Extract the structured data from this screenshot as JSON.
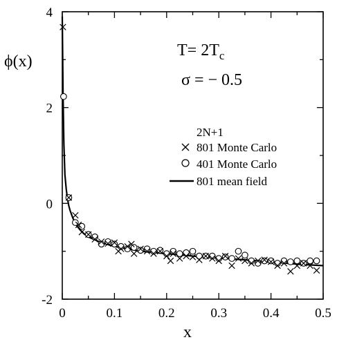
{
  "chart_data": {
    "type": "scatter",
    "xlabel": "x",
    "ylabel": "ϕ(x)",
    "xlim": [
      0,
      0.5
    ],
    "ylim": [
      -2,
      4
    ],
    "x_ticks": [
      "0",
      "0.1",
      "0.2",
      "0.3",
      "0.4",
      "0.5"
    ],
    "y_ticks": [
      "4",
      "2",
      "0",
      "-2"
    ],
    "grid": false,
    "annotations": {
      "temperature": "T= 2T",
      "temperature_sub": "c",
      "sigma": "σ = − 0.5"
    },
    "legend": {
      "title": "2N+1",
      "position": "center-right"
    },
    "series": [
      {
        "name": "801 Monte Carlo",
        "marker": "cross",
        "x": [
          0.0012,
          0.0125,
          0.025,
          0.0312,
          0.0375,
          0.05,
          0.0625,
          0.075,
          0.0875,
          0.1,
          0.1075,
          0.1125,
          0.125,
          0.1325,
          0.1375,
          0.15,
          0.1625,
          0.175,
          0.1875,
          0.2,
          0.2075,
          0.2125,
          0.225,
          0.2375,
          0.25,
          0.2625,
          0.275,
          0.2875,
          0.3,
          0.3125,
          0.325,
          0.3375,
          0.35,
          0.3625,
          0.375,
          0.3875,
          0.4,
          0.4125,
          0.425,
          0.4375,
          0.45,
          0.4625,
          0.475,
          0.4875
        ],
        "y": [
          3.68,
          0.12,
          -0.25,
          -0.45,
          -0.6,
          -0.65,
          -0.75,
          -0.8,
          -0.84,
          -0.82,
          -1.0,
          -0.95,
          -0.9,
          -0.85,
          -1.05,
          -0.95,
          -1.0,
          -1.05,
          -1.0,
          -1.1,
          -1.2,
          -1.05,
          -1.15,
          -1.1,
          -1.12,
          -1.18,
          -1.1,
          -1.15,
          -1.2,
          -1.1,
          -1.3,
          -1.15,
          -1.2,
          -1.25,
          -1.2,
          -1.18,
          -1.22,
          -1.3,
          -1.25,
          -1.42,
          -1.3,
          -1.25,
          -1.3,
          -1.4
        ]
      },
      {
        "name": "401 Monte Carlo",
        "marker": "circle",
        "x": [
          0.0025,
          0.0125,
          0.025,
          0.0375,
          0.05,
          0.0625,
          0.075,
          0.0875,
          0.1,
          0.1125,
          0.125,
          0.1375,
          0.15,
          0.1625,
          0.175,
          0.1875,
          0.2,
          0.2125,
          0.225,
          0.2375,
          0.25,
          0.2625,
          0.275,
          0.2875,
          0.3,
          0.3125,
          0.325,
          0.3375,
          0.35,
          0.3625,
          0.375,
          0.3875,
          0.4,
          0.4125,
          0.425,
          0.4375,
          0.45,
          0.4625,
          0.475,
          0.4875
        ],
        "y": [
          2.23,
          0.12,
          -0.4,
          -0.48,
          -0.65,
          -0.7,
          -0.85,
          -0.8,
          -0.85,
          -0.9,
          -0.95,
          -0.92,
          -0.98,
          -0.95,
          -1.0,
          -0.98,
          -1.05,
          -1.0,
          -1.05,
          -1.03,
          -1.0,
          -1.1,
          -1.1,
          -1.1,
          -1.15,
          -1.12,
          -1.15,
          -1.0,
          -1.08,
          -1.2,
          -1.25,
          -1.2,
          -1.2,
          -1.25,
          -1.2,
          -1.22,
          -1.2,
          -1.25,
          -1.2,
          -1.2
        ]
      },
      {
        "name": "801 mean field",
        "marker": "line",
        "x": [
          0.0,
          0.0015,
          0.003,
          0.005,
          0.0075,
          0.01,
          0.0125,
          0.015,
          0.02,
          0.025,
          0.03,
          0.04,
          0.05,
          0.06,
          0.075,
          0.1,
          0.125,
          0.15,
          0.2,
          0.25,
          0.3,
          0.35,
          0.4,
          0.45,
          0.5
        ],
        "y": [
          3.9,
          2.3,
          1.25,
          0.6,
          0.3,
          0.1,
          -0.05,
          -0.15,
          -0.3,
          -0.42,
          -0.5,
          -0.62,
          -0.7,
          -0.75,
          -0.82,
          -0.9,
          -0.95,
          -1.0,
          -1.05,
          -1.1,
          -1.14,
          -1.18,
          -1.22,
          -1.27,
          -1.3
        ]
      }
    ]
  }
}
